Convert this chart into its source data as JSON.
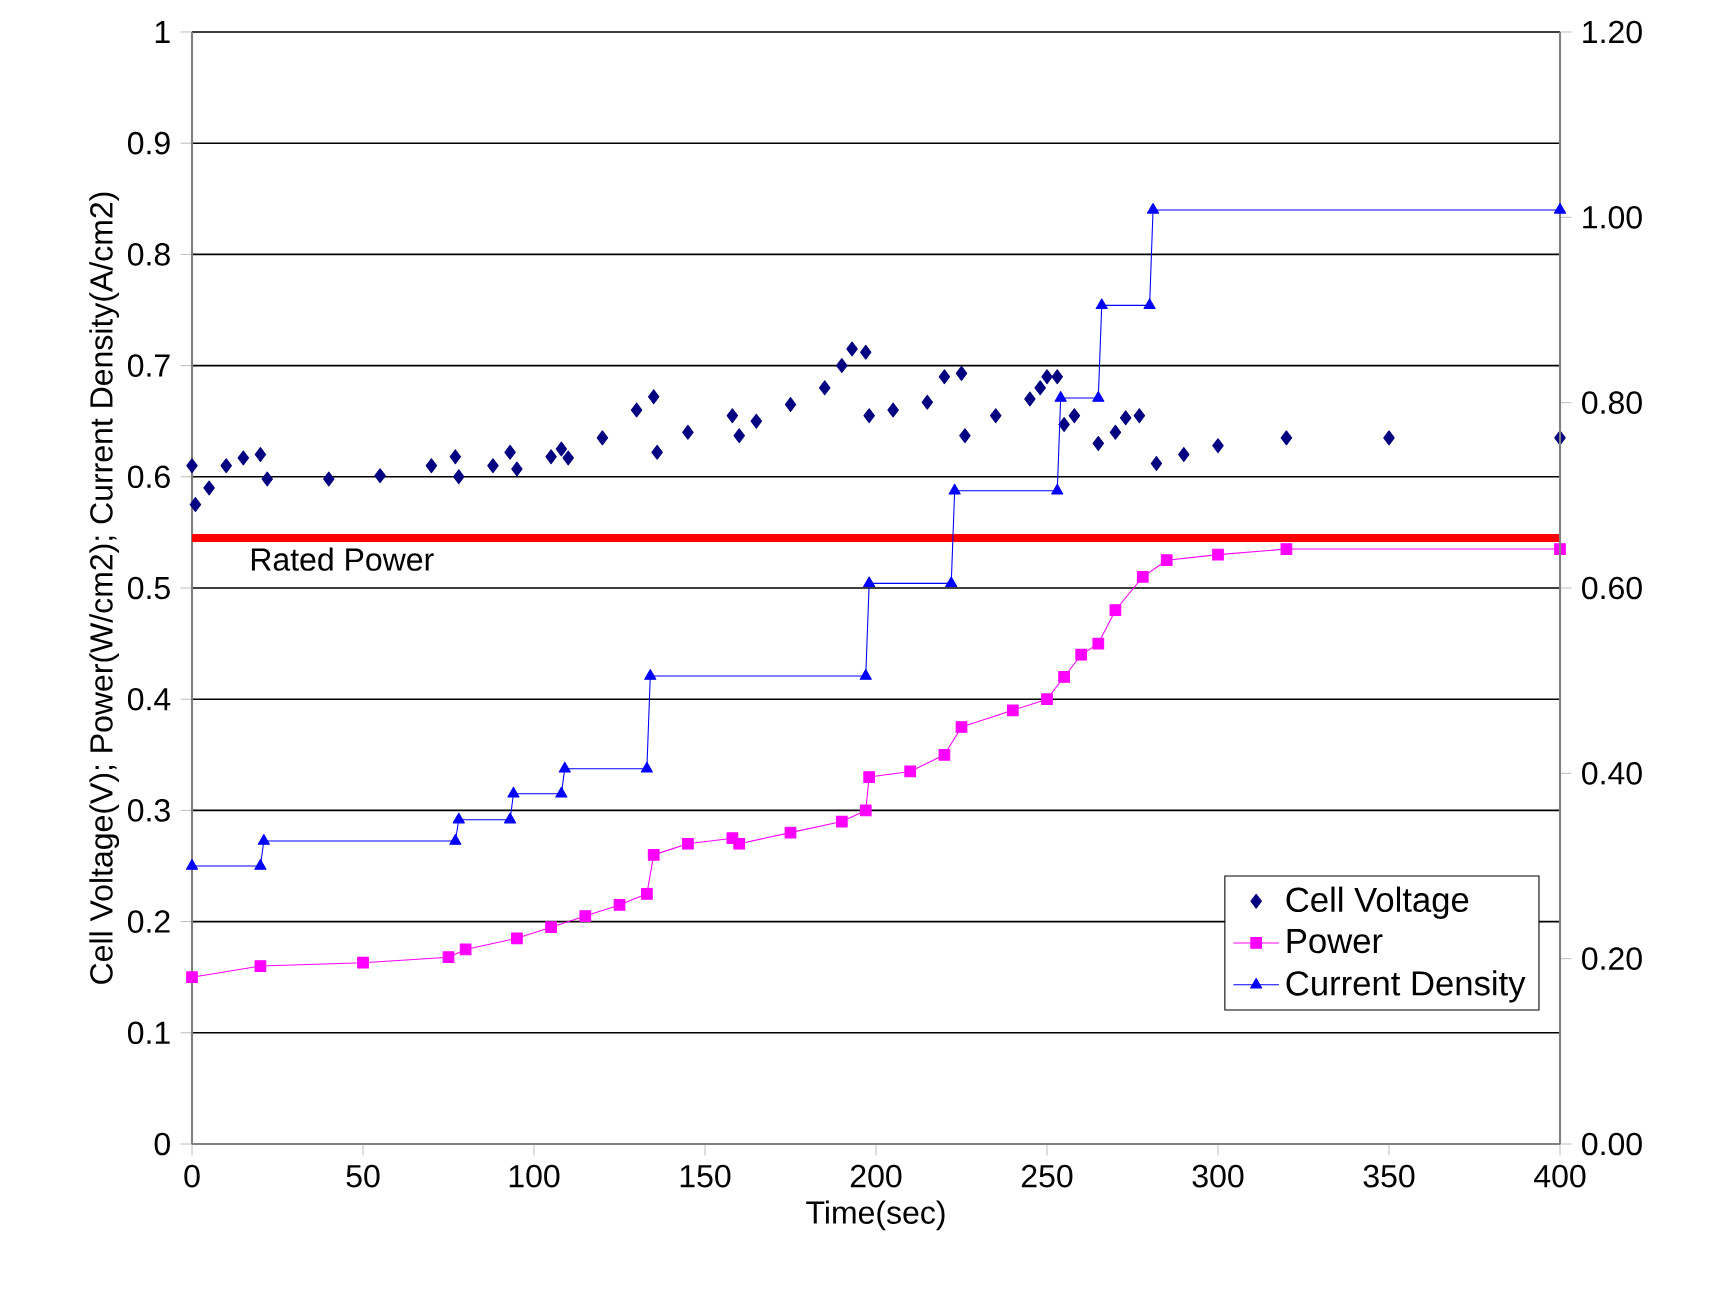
{
  "chart_data": {
    "type": "line",
    "xlabel": "Time(sec)",
    "ylabel": "Cell Voltage(V); Power(W/cm2); Current Density(A/cm2)",
    "xlim": [
      0,
      400
    ],
    "xticks": [
      0,
      50,
      100,
      150,
      200,
      250,
      300,
      350,
      400
    ],
    "ylim": [
      0,
      1
    ],
    "yticks": [
      0,
      0.1,
      0.2,
      0.3,
      0.4,
      0.5,
      0.6,
      0.7,
      0.8,
      0.9,
      1
    ],
    "y2lim": [
      0,
      1.2
    ],
    "y2ticks": [
      {
        "value": 0,
        "label": "0.00"
      },
      {
        "value": 0.2,
        "label": "0.20"
      },
      {
        "value": 0.4,
        "label": "0.40"
      },
      {
        "value": 0.6,
        "label": "0.60"
      },
      {
        "value": 0.8,
        "label": "0.80"
      },
      {
        "value": 1.0,
        "label": "1.00"
      },
      {
        "value": 1.2,
        "label": "1.20"
      }
    ],
    "grid": "y",
    "legend": "bottom right",
    "series": [
      {
        "name": "Cell Voltage",
        "type": "scatter",
        "marker": "diamond",
        "color": "#000080",
        "x": [
          0,
          1,
          5,
          10,
          15,
          20,
          22,
          40,
          55,
          70,
          77,
          78,
          88,
          93,
          95,
          105,
          108,
          110,
          120,
          130,
          135,
          136,
          145,
          158,
          160,
          165,
          175,
          185,
          190,
          193,
          197,
          198,
          205,
          215,
          220,
          225,
          226,
          235,
          245,
          248,
          250,
          253,
          255,
          258,
          265,
          270,
          273,
          277,
          282,
          290,
          300,
          320,
          350,
          400
        ],
        "values": [
          0.61,
          0.575,
          0.59,
          0.61,
          0.617,
          0.62,
          0.598,
          0.598,
          0.601,
          0.61,
          0.618,
          0.6,
          0.61,
          0.622,
          0.607,
          0.618,
          0.625,
          0.617,
          0.635,
          0.66,
          0.672,
          0.622,
          0.64,
          0.655,
          0.637,
          0.65,
          0.665,
          0.68,
          0.7,
          0.715,
          0.712,
          0.655,
          0.66,
          0.667,
          0.69,
          0.693,
          0.637,
          0.655,
          0.67,
          0.68,
          0.69,
          0.69,
          0.647,
          0.655,
          0.63,
          0.64,
          0.653,
          0.655,
          0.612,
          0.62,
          0.628,
          0.635,
          0.635,
          0.635
        ]
      },
      {
        "name": "Power",
        "marker": "square",
        "color": "#ff00ff",
        "x": [
          0,
          20,
          50,
          75,
          80,
          95,
          105,
          115,
          125,
          133,
          135,
          145,
          158,
          160,
          175,
          190,
          197,
          198,
          210,
          220,
          225,
          240,
          250,
          255,
          260,
          265,
          270,
          278,
          285,
          300,
          320,
          400
        ],
        "values": [
          0.15,
          0.16,
          0.163,
          0.168,
          0.175,
          0.185,
          0.195,
          0.205,
          0.215,
          0.225,
          0.26,
          0.27,
          0.275,
          0.27,
          0.28,
          0.29,
          0.3,
          0.33,
          0.335,
          0.35,
          0.375,
          0.39,
          0.4,
          0.42,
          0.44,
          0.45,
          0.48,
          0.51,
          0.525,
          0.53,
          0.535,
          0.535
        ]
      },
      {
        "name": "Current Density",
        "marker": "triangle",
        "axis": "y2",
        "color": "#0000ff",
        "x": [
          0,
          20,
          21,
          77,
          78,
          93,
          94,
          108,
          109,
          133,
          134,
          197,
          198,
          222,
          223,
          253,
          254,
          265,
          266,
          280,
          281,
          400
        ],
        "values": [
          0.3,
          0.3,
          0.327,
          0.327,
          0.35,
          0.35,
          0.378,
          0.378,
          0.405,
          0.405,
          0.505,
          0.505,
          0.605,
          0.605,
          0.705,
          0.705,
          0.805,
          0.805,
          0.905,
          0.905,
          1.008,
          1.008
        ]
      }
    ],
    "ref_lines": [
      {
        "axis": "y",
        "value": 0.545,
        "label": "Rated Power",
        "color": "#ff0000"
      }
    ]
  }
}
